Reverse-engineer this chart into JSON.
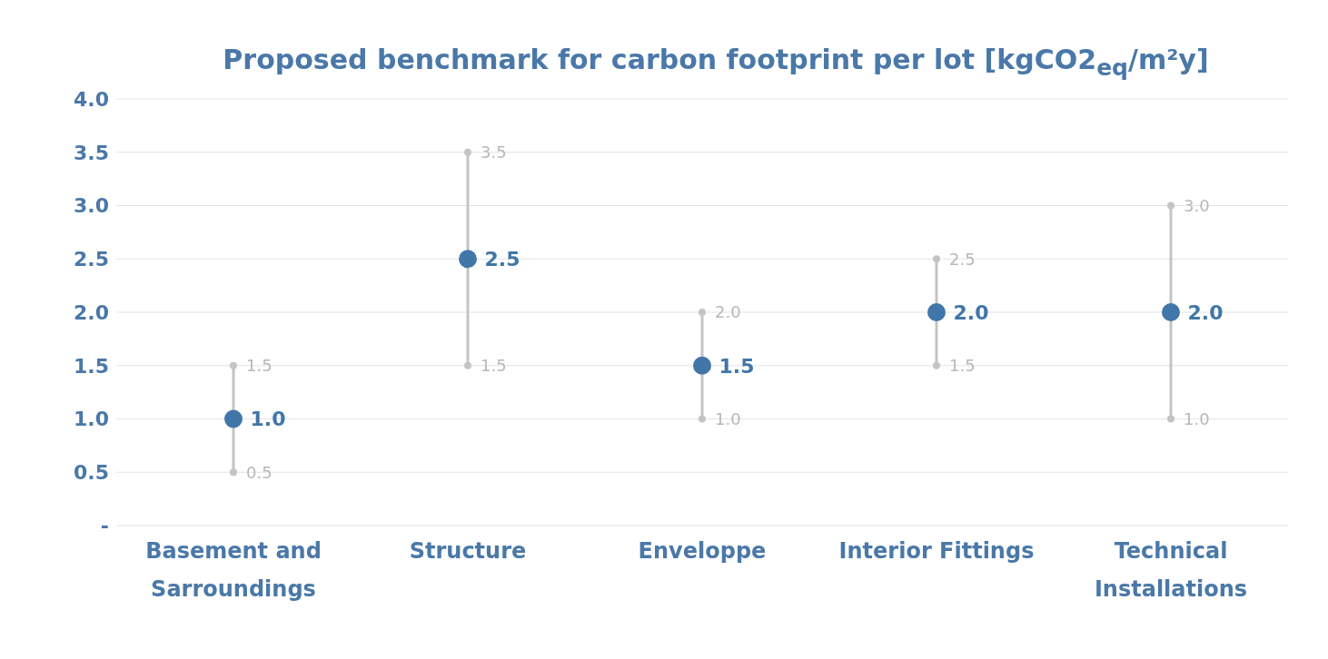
{
  "chart_data": {
    "type": "scatter",
    "title": "Proposed benchmark for carbon footprint per lot [kgCO2$_{eq}$/m²y]",
    "categories": [
      "Basement and Sarroundings",
      "Structure",
      "Enveloppe",
      "Interior Fittings",
      "Technical Installations"
    ],
    "values": [
      1.0,
      2.5,
      1.5,
      2.0,
      2.0
    ],
    "value_labels": [
      "1.0",
      "2.5",
      "1.5",
      "2.0",
      "2.0"
    ],
    "errors": [
      0.5,
      1.0,
      0.5,
      0.5,
      1.0
    ],
    "color": "#4176a8",
    "annotations": [
      {
        "text": "1.5",
        "x": "Basement and Sarroundings",
        "y": 1.5
      },
      {
        "text": "0.5",
        "x": "Basement and Sarroundings",
        "y": 0.5
      },
      {
        "text": "3.5",
        "x": "Structure",
        "y": 3.5
      },
      {
        "text": "1.5",
        "x": "Structure",
        "y": 1.5
      },
      {
        "text": "2.0",
        "x": "Enveloppe",
        "y": 2.0
      },
      {
        "text": "1.0",
        "x": "Enveloppe",
        "y": 1.0
      },
      {
        "text": "2.5",
        "x": "Interior Fittings",
        "y": 2.5
      },
      {
        "text": "1.5",
        "x": "Interior Fittings",
        "y": 1.5
      },
      {
        "text": "3.0",
        "x": "Technical Installations",
        "y": 3.0
      },
      {
        "text": "1.0",
        "x": "Technical Installations",
        "y": 1.0
      }
    ],
    "ylim": [
      0,
      4
    ],
    "yticks": [
      {
        "value": 0,
        "label": "-"
      },
      0.5,
      {
        "value": 1,
        "label": "1.0"
      },
      1.5,
      {
        "value": 2,
        "label": "2.0"
      },
      2.5,
      {
        "value": 3,
        "label": "3.0"
      },
      3.5,
      {
        "value": 4,
        "label": "4.0"
      }
    ],
    "grid": "y",
    "legend": false,
    "marker": "circle"
  }
}
